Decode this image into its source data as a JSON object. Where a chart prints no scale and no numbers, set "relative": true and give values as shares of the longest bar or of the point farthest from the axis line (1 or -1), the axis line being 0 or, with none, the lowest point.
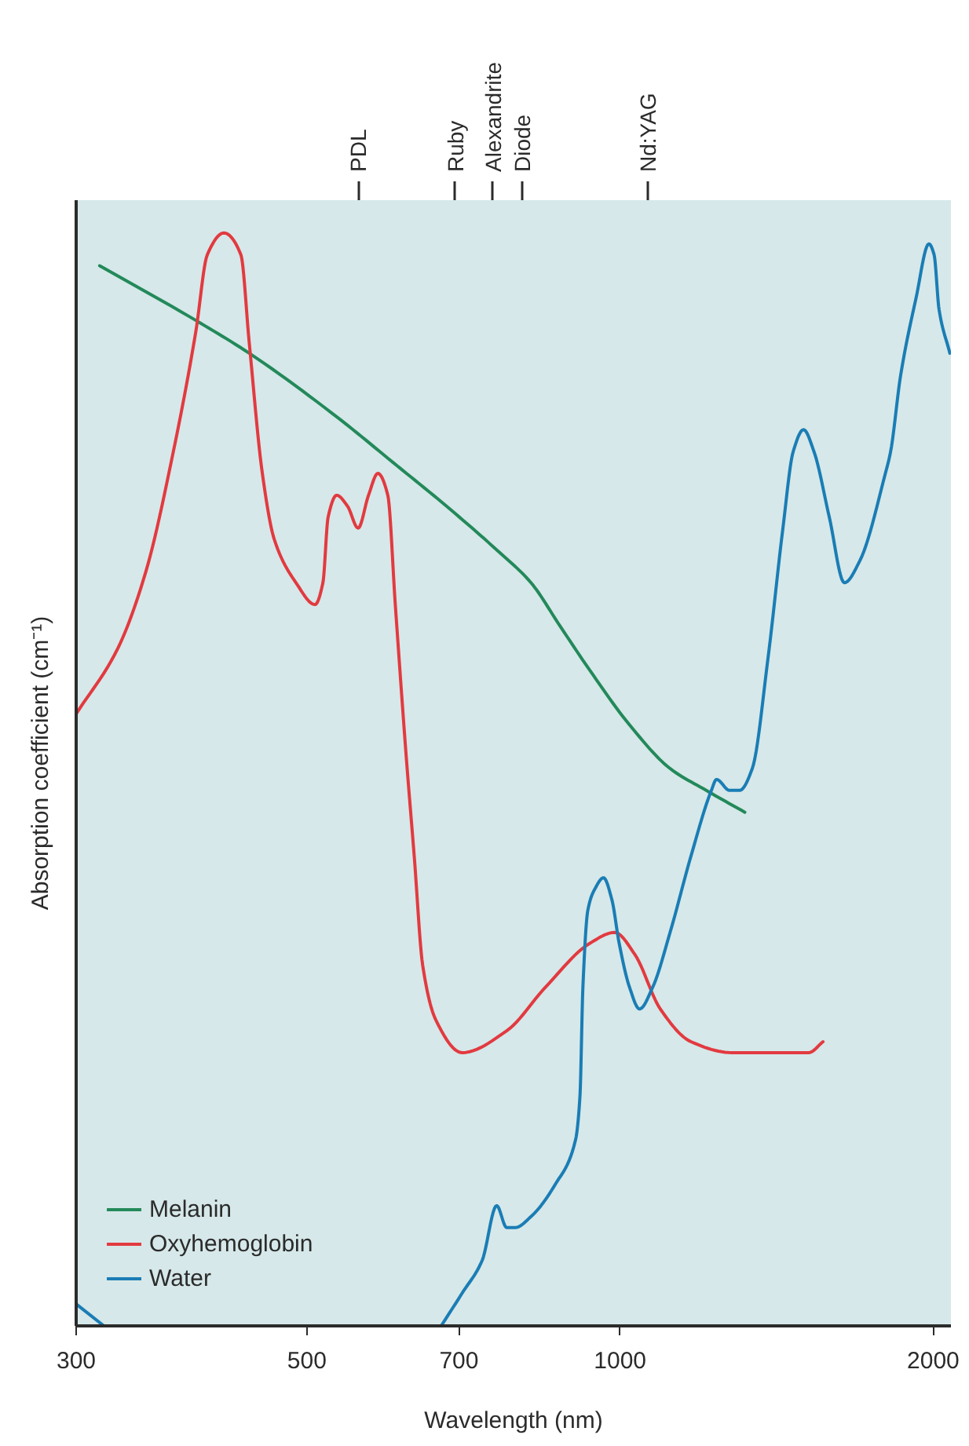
{
  "chart_data": {
    "type": "line",
    "xlabel": "Wavelength (nm)",
    "ylabel": "Absorption coefficient (cm⁻¹)",
    "log": "x",
    "xlim": [
      300,
      2080
    ],
    "xticks": [
      300,
      500,
      700,
      1000,
      2000
    ],
    "relative": true,
    "grid": false,
    "legend": "bottom left",
    "line_style": "solid",
    "ref_lines": [
      {
        "axis": "x",
        "value": 560,
        "label": "PDL"
      },
      {
        "axis": "x",
        "value": 694,
        "label": "Ruby"
      },
      {
        "axis": "x",
        "value": 755,
        "label": "Alexandrite"
      },
      {
        "axis": "x",
        "value": 805,
        "label": "Diode"
      },
      {
        "axis": "x",
        "value": 1064,
        "label": "Nd:YAG"
      }
    ],
    "series": [
      {
        "name": "Melanin",
        "color": "#23895a",
        "x": [
          316,
          391,
          440,
          537,
          605,
          681,
          761,
          821,
          876,
          935,
          1021,
          1117,
          1210,
          1318
        ],
        "values": [
          0.97,
          0.92,
          0.89,
          0.83,
          0.79,
          0.75,
          0.71,
          0.68,
          0.64,
          0.6,
          0.55,
          0.51,
          0.49,
          0.47
        ]
      },
      {
        "name": "Oxyhemoglobin",
        "color": "#e23a40",
        "x": [
          300,
          329,
          350,
          372,
          391,
          401,
          416,
          432,
          440,
          453,
          465,
          488,
          509,
          518,
          524,
          534,
          547,
          560,
          573,
          585,
          598,
          608,
          623,
          634,
          646,
          665,
          705,
          778,
          848,
          935,
          988,
          1033,
          1093,
          1170,
          1281,
          1434,
          1518,
          1567
        ],
        "values": [
          0.56,
          0.62,
          0.69,
          0.8,
          0.91,
          0.98,
          1.0,
          0.98,
          0.9,
          0.78,
          0.72,
          0.68,
          0.66,
          0.68,
          0.74,
          0.76,
          0.75,
          0.73,
          0.76,
          0.78,
          0.76,
          0.66,
          0.52,
          0.43,
          0.33,
          0.28,
          0.25,
          0.27,
          0.31,
          0.35,
          0.36,
          0.34,
          0.29,
          0.26,
          0.25,
          0.25,
          0.25,
          0.26
        ]
      },
      {
        "name": "Water",
        "color": "#1a7db5",
        "x": [
          300,
          319,
          450,
          673,
          705,
          737,
          761,
          778,
          793,
          821,
          867,
          906,
          915,
          921,
          931,
          946,
          964,
          982,
          998,
          1021,
          1044,
          1075,
          1117,
          1170,
          1224,
          1238,
          1274,
          1303,
          1340,
          1387,
          1434,
          1467,
          1501,
          1536,
          1589,
          1643,
          1700,
          1799,
          1820,
          1861,
          1925,
          1981,
          2004,
          2026,
          2075
        ],
        "values": [
          0.02,
          0,
          null,
          0,
          0.03,
          0.06,
          0.11,
          0.09,
          0.09,
          0.1,
          0.13,
          0.17,
          0.21,
          0.31,
          0.38,
          0.4,
          0.41,
          0.39,
          0.35,
          0.31,
          0.29,
          0.31,
          0.36,
          0.43,
          0.49,
          0.5,
          0.49,
          0.49,
          0.51,
          0.61,
          0.73,
          0.8,
          0.82,
          0.8,
          0.74,
          0.68,
          0.7,
          0.78,
          0.8,
          0.87,
          0.94,
          0.99,
          0.98,
          0.93,
          0.89
        ]
      }
    ]
  }
}
